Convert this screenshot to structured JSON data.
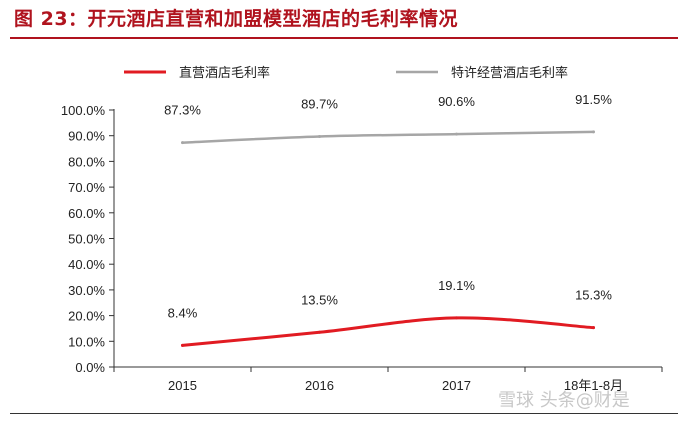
{
  "figure": {
    "title": "图 23：开元酒店直营和加盟模型酒店的毛利率情况"
  },
  "watermark": "雪球  头条@财是",
  "chart_data": {
    "type": "line",
    "categories": [
      "2015",
      "2016",
      "2017",
      "18年1-8月"
    ],
    "series": [
      {
        "name": "直营酒店毛利率",
        "values": [
          8.4,
          13.5,
          19.1,
          15.3
        ],
        "labels": [
          "8.4%",
          "13.5%",
          "19.1%",
          "15.3%"
        ],
        "color": "#e11b22"
      },
      {
        "name": "特许经营酒店毛利率",
        "values": [
          87.3,
          89.7,
          90.6,
          91.5
        ],
        "labels": [
          "87.3%",
          "89.7%",
          "90.6%",
          "91.5%"
        ],
        "color": "#a6a6a6"
      }
    ],
    "yticks": [
      "0.0%",
      "10.0%",
      "20.0%",
      "30.0%",
      "40.0%",
      "50.0%",
      "60.0%",
      "70.0%",
      "80.0%",
      "90.0%",
      "100.0%"
    ],
    "ylim": [
      0,
      100
    ],
    "grid": false,
    "legend_position": "top"
  }
}
